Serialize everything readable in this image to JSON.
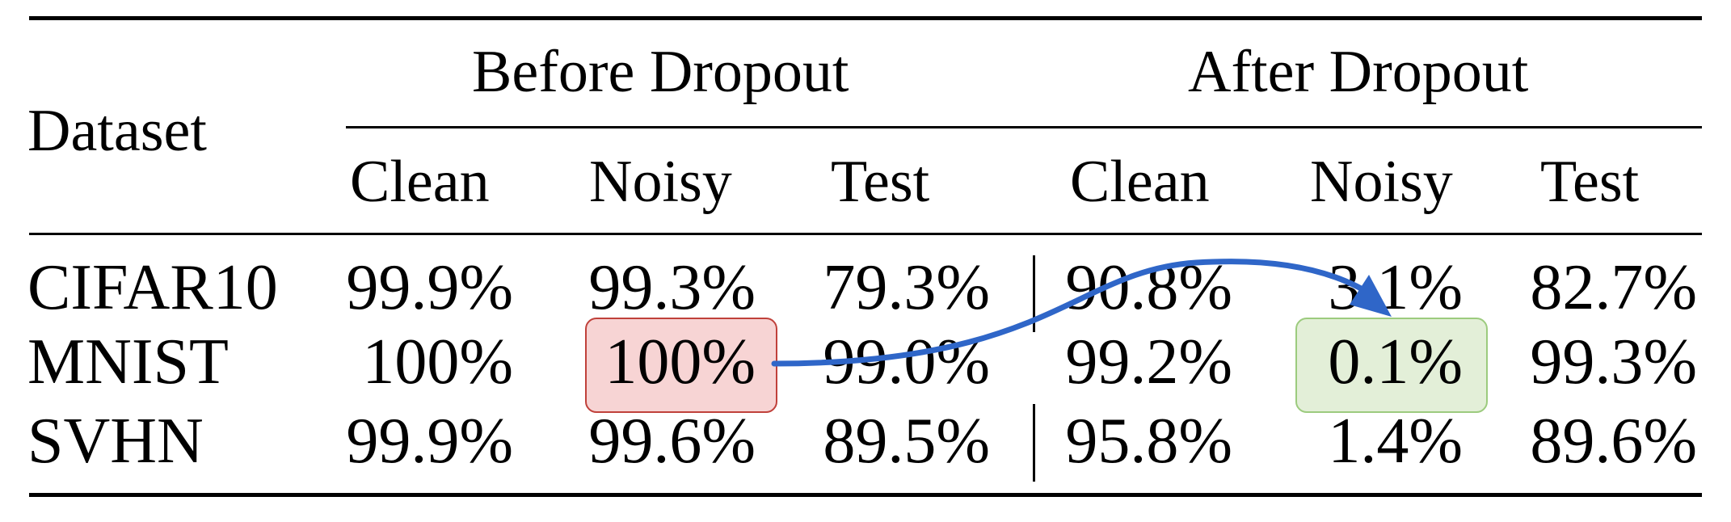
{
  "header": {
    "dataset": "Dataset",
    "group_before": "Before Dropout",
    "group_after": "After Dropout",
    "cols": [
      "Clean",
      "Noisy",
      "Test",
      "Clean",
      "Noisy",
      "Test"
    ]
  },
  "rows": [
    {
      "dataset": "CIFAR10",
      "values": [
        "99.9%",
        "99.3%",
        "79.3%",
        "90.8%",
        "3.1%",
        "82.7%"
      ]
    },
    {
      "dataset": "MNIST",
      "values": [
        "100%",
        "100%",
        "99.0%",
        "99.2%",
        "0.1%",
        "99.3%"
      ]
    },
    {
      "dataset": "SVHN",
      "values": [
        "99.9%",
        "99.6%",
        "89.5%",
        "95.8%",
        "1.4%",
        "89.6%"
      ]
    }
  ],
  "highlights": {
    "before": {
      "row": "MNIST",
      "column": "Noisy",
      "color": "#f7d4d4"
    },
    "after": {
      "row": "MNIST",
      "column": "Noisy",
      "color": "#e3efd8"
    },
    "arrow_color": "#2f66c8"
  }
}
